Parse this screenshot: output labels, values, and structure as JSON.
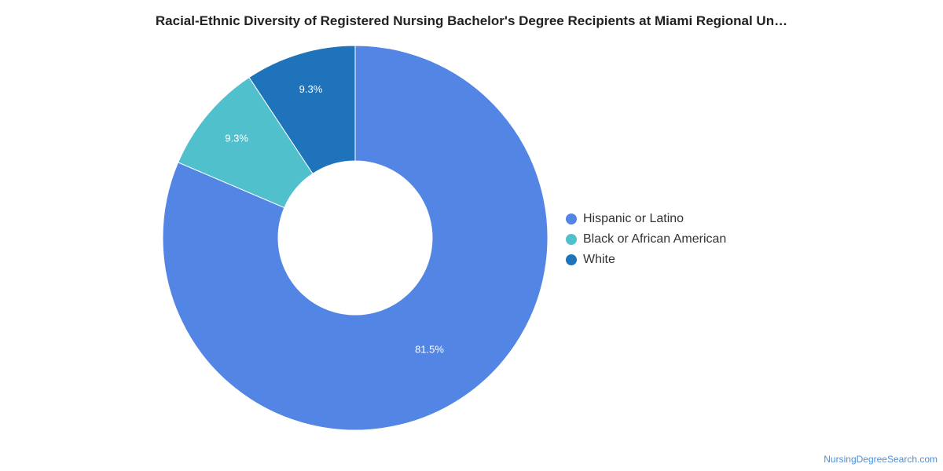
{
  "chart": {
    "title": "Racial-Ethnic Diversity of Registered Nursing Bachelor's Degree Recipients at Miami Regional Un…"
  },
  "chart_data": {
    "type": "pie",
    "title": "Racial-Ethnic Diversity of Registered Nursing Bachelor's Degree Recipients at Miami Regional Un…",
    "donut": true,
    "legend_position": "right",
    "series": [
      {
        "name": "Hispanic or Latino",
        "value": 81.5,
        "label": "81.5%",
        "color": "#5385e4"
      },
      {
        "name": "Black or African American",
        "value": 9.3,
        "label": "9.3%",
        "color": "#50c1cc"
      },
      {
        "name": "White",
        "value": 9.3,
        "label": "9.3%",
        "color": "#1f73ba"
      }
    ]
  },
  "footer": {
    "credit": "NursingDegreeSearch.com"
  }
}
